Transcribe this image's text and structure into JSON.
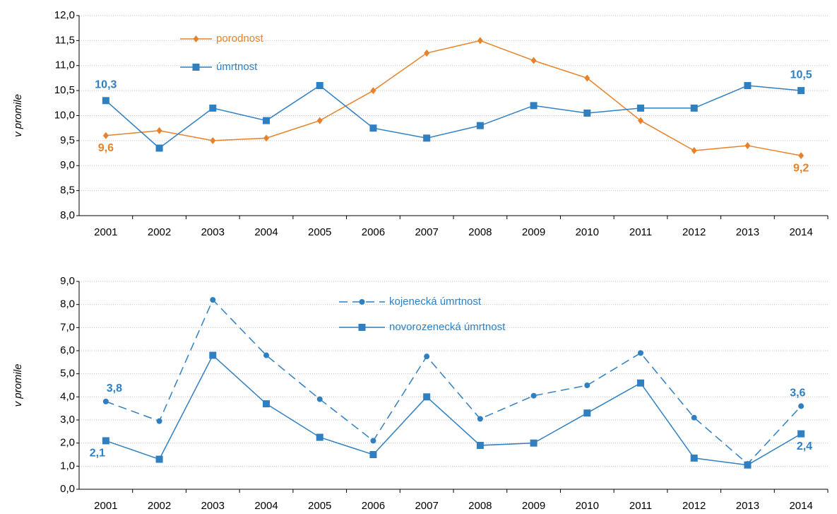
{
  "chart_data": [
    {
      "type": "line",
      "ylabel": "v promile",
      "categories": [
        "2001",
        "2002",
        "2003",
        "2004",
        "2005",
        "2006",
        "2007",
        "2008",
        "2009",
        "2010",
        "2011",
        "2012",
        "2013",
        "2014"
      ],
      "ylim": [
        8,
        12
      ],
      "yticks": [
        {
          "value": 8,
          "label": "8,0"
        },
        {
          "value": 8.5,
          "label": "8,5"
        },
        {
          "value": 9,
          "label": "9,0"
        },
        {
          "value": 9.5,
          "label": "9,5"
        },
        {
          "value": 10,
          "label": "10,0"
        },
        {
          "value": 10.5,
          "label": "10,5"
        },
        {
          "value": 11,
          "label": "11,0"
        },
        {
          "value": 11.5,
          "label": "11,5"
        },
        {
          "value": 12,
          "label": "12,0"
        }
      ],
      "grid": true,
      "series": [
        {
          "name": "porodnost",
          "color": "#e8822a",
          "marker": "diamond",
          "dash": false,
          "values": [
            9.6,
            9.7,
            9.5,
            9.55,
            9.9,
            10.5,
            11.25,
            11.5,
            11.1,
            10.75,
            9.9,
            9.3,
            9.4,
            9.2
          ],
          "value_labels": [
            "9,6",
            null,
            null,
            null,
            null,
            null,
            null,
            null,
            null,
            null,
            null,
            null,
            null,
            "9,2"
          ]
        },
        {
          "name": "úmrtnost",
          "color": "#2f7fc1",
          "marker": "square",
          "dash": false,
          "values": [
            10.3,
            9.35,
            10.15,
            9.9,
            10.6,
            9.75,
            9.55,
            9.8,
            10.2,
            10.05,
            10.15,
            10.15,
            10.6,
            10.5
          ],
          "value_labels": [
            "10,3",
            null,
            null,
            null,
            null,
            null,
            null,
            null,
            null,
            null,
            null,
            null,
            null,
            "10,5"
          ]
        }
      ]
    },
    {
      "type": "line",
      "ylabel": "v promile",
      "categories": [
        "2001",
        "2002",
        "2003",
        "2004",
        "2005",
        "2006",
        "2007",
        "2008",
        "2009",
        "2010",
        "2011",
        "2012",
        "2013",
        "2014"
      ],
      "ylim": [
        0,
        9
      ],
      "yticks": [
        {
          "value": 0,
          "label": "0,0"
        },
        {
          "value": 1,
          "label": "1,0"
        },
        {
          "value": 2,
          "label": "2,0"
        },
        {
          "value": 3,
          "label": "3,0"
        },
        {
          "value": 4,
          "label": "4,0"
        },
        {
          "value": 5,
          "label": "5,0"
        },
        {
          "value": 6,
          "label": "6,0"
        },
        {
          "value": 7,
          "label": "7,0"
        },
        {
          "value": 8,
          "label": "8,0"
        },
        {
          "value": 9,
          "label": "9,0"
        }
      ],
      "grid": true,
      "series": [
        {
          "name": "kojenecká úmrtnost",
          "color": "#2f7fc1",
          "marker": "circle",
          "dash": true,
          "values": [
            3.8,
            2.95,
            8.2,
            5.8,
            3.9,
            2.1,
            5.75,
            3.05,
            4.05,
            4.5,
            5.9,
            3.1,
            1.1,
            3.6
          ],
          "value_labels": [
            "3,8",
            null,
            null,
            null,
            null,
            null,
            null,
            null,
            null,
            null,
            null,
            null,
            null,
            "3,6"
          ]
        },
        {
          "name": "novorozenecká úmrtnost",
          "color": "#2f7fc1",
          "marker": "square",
          "dash": false,
          "values": [
            2.1,
            1.3,
            5.8,
            3.7,
            2.25,
            1.5,
            4.0,
            1.9,
            2.0,
            3.3,
            4.6,
            1.35,
            1.05,
            2.4
          ],
          "value_labels": [
            "2,1",
            null,
            null,
            null,
            null,
            null,
            null,
            null,
            null,
            null,
            null,
            null,
            null,
            "2,4"
          ]
        }
      ]
    }
  ]
}
